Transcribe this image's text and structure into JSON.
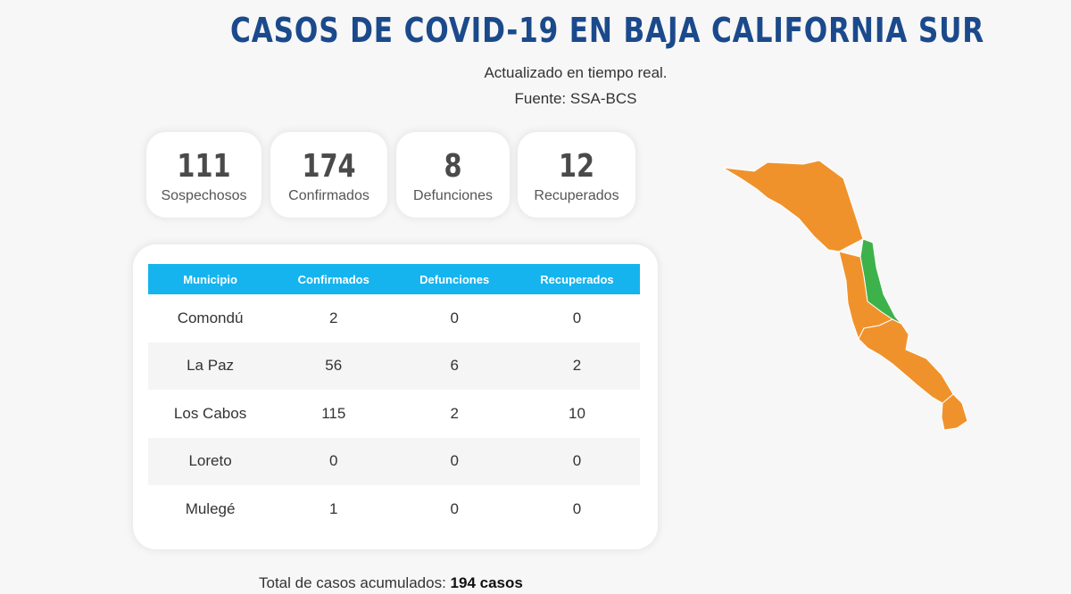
{
  "header": {
    "title": "CASOS DE COVID-19 EN BAJA CALIFORNIA SUR",
    "subtitle": "Actualizado en tiempo real.",
    "source": "Fuente: SSA-BCS"
  },
  "stats": [
    {
      "value": "111",
      "label": "Sospechosos"
    },
    {
      "value": "174",
      "label": "Confirmados"
    },
    {
      "value": "8",
      "label": "Defunciones"
    },
    {
      "value": "12",
      "label": "Recuperados"
    }
  ],
  "table": {
    "headers": [
      "Municipio",
      "Confirmados",
      "Defunciones",
      "Recuperados"
    ],
    "rows": [
      [
        "Comondú",
        "2",
        "0",
        "0"
      ],
      [
        "La Paz",
        "56",
        "6",
        "2"
      ],
      [
        "Los Cabos",
        "115",
        "2",
        "10"
      ],
      [
        "Loreto",
        "0",
        "0",
        "0"
      ],
      [
        "Mulegé",
        "1",
        "0",
        "0"
      ]
    ]
  },
  "total": {
    "label": "Total de casos acumulados:",
    "value": "194 casos"
  },
  "map": {
    "colors": {
      "orange": "#f0922b",
      "green": "#3db24a"
    }
  }
}
